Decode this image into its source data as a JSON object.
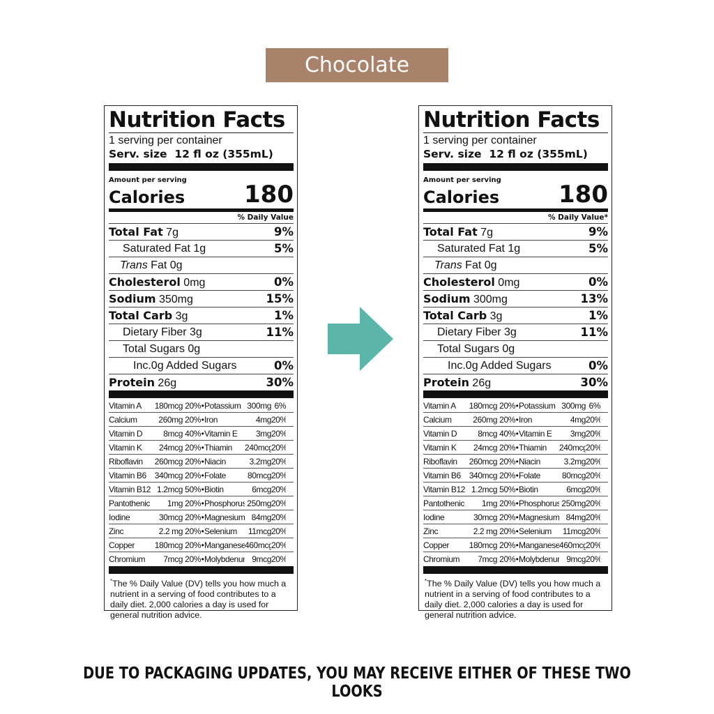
{
  "flavor": "Chocolate",
  "bottom_note": "DUE TO PACKAGING UPDATES, YOU MAY RECEIVE EITHER OF THESE TWO LOOKS",
  "colors": {
    "flavor_badge": "#a8826a",
    "arrow": "#5bb5a8"
  },
  "arrow_icon": "arrow-right-icon",
  "panels": [
    {
      "title": "Nutrition Facts",
      "servings": "1 serving per container",
      "serving_size_label": "Serv. size",
      "serving_size_value": "12 fl oz (355mL)",
      "amount_per_serving": "Amount per serving",
      "calories_label": "Calories",
      "calories_value": "180",
      "dv_header": "% Daily Value",
      "nutrients": [
        {
          "bold": "Total Fat",
          "text": " 7g",
          "pct": "9%",
          "indent": ""
        },
        {
          "bold": "",
          "text": "Saturated Fat 1g",
          "pct": "5%",
          "indent": "ind1"
        },
        {
          "bold": "",
          "italic": "Trans",
          "text": " Fat 0g",
          "pct": "",
          "indent": "ind1i"
        },
        {
          "bold": "Cholesterol",
          "text": " 0mg",
          "pct": "0%",
          "indent": ""
        },
        {
          "bold": "Sodium",
          "text": " 350mg",
          "pct": "15%",
          "indent": ""
        },
        {
          "bold": "Total Carb",
          "text": " 3g",
          "pct": "1%",
          "indent": ""
        },
        {
          "bold": "",
          "text": "Dietary Fiber 3g",
          "pct": "11%",
          "indent": "ind1"
        },
        {
          "bold": "",
          "text": "Total Sugars 0g",
          "pct": "",
          "indent": "ind1"
        },
        {
          "bold": "",
          "text": "Inc.0g Added Sugars",
          "pct": "0%",
          "indent": "ind2"
        },
        {
          "bold": "Protein",
          "text": " 26g",
          "pct": "30%",
          "indent": ""
        }
      ],
      "vitamins": [
        [
          "Vitamin A",
          "180mcg",
          "20%",
          "Potassium",
          "300mg",
          "6%"
        ],
        [
          "Calcium",
          "260mg",
          "20%",
          "Iron",
          "4mg",
          "20%"
        ],
        [
          "Vitamin D",
          "8mcg",
          "40%",
          "Vitamin E",
          "3mg",
          "20%"
        ],
        [
          "Vitamin K",
          "24mcg",
          "20%",
          "Thiamin",
          "240mcg",
          "20%"
        ],
        [
          "Riboflavin",
          "260mcg",
          "20%",
          "Niacin",
          "3.2mg",
          "20%"
        ],
        [
          "Vitamin B6",
          "340mcg",
          "20%",
          "Folate",
          "80mcg",
          "20%"
        ],
        [
          "Vitamin B12",
          "1.2mcg",
          "50%",
          "Biotin",
          "6mcg",
          "20%"
        ],
        [
          "Pantothenic Acid",
          "1mg",
          "20%",
          "Phosphorus",
          "250mg",
          "20%"
        ],
        [
          "Iodine",
          "30mcg",
          "20%",
          "Magnesium",
          "84mg",
          "20%"
        ],
        [
          "Zinc",
          "2.2 mg",
          "20%",
          "Selenium",
          "11mcg",
          "20%"
        ],
        [
          "Copper",
          "180mcg",
          "20%",
          "Manganese",
          "460mcg",
          "20%"
        ],
        [
          "Chromium",
          "7mcg",
          "20%",
          "Molybdenum",
          "9mcg",
          "20%"
        ]
      ],
      "footnote_star": "*",
      "footnote": "The % Daily Value (DV) tells you how much a nutrient in a serving of food contributes to a daily diet. 2,000 calories a day is used for general nutrition advice."
    },
    {
      "title": "Nutrition Facts",
      "servings": "1 serving per container",
      "serving_size_label": "Serv. size",
      "serving_size_value": "12 fl oz (355mL)",
      "amount_per_serving": "Amount per serving",
      "calories_label": "Calories",
      "calories_value": "180",
      "dv_header": "% Daily Value*",
      "nutrients": [
        {
          "bold": "Total Fat",
          "text": " 7g",
          "pct": "9%",
          "indent": ""
        },
        {
          "bold": "",
          "text": "Saturated Fat 1g",
          "pct": "5%",
          "indent": "ind1"
        },
        {
          "bold": "",
          "italic": "Trans",
          "text": " Fat 0g",
          "pct": "",
          "indent": "ind1i"
        },
        {
          "bold": "Cholesterol",
          "text": " 0mg",
          "pct": "0%",
          "indent": ""
        },
        {
          "bold": "Sodium",
          "text": " 300mg",
          "pct": "13%",
          "indent": ""
        },
        {
          "bold": "Total Carb",
          "text": " 3g",
          "pct": "1%",
          "indent": ""
        },
        {
          "bold": "",
          "text": "Dietary Fiber 3g",
          "pct": "11%",
          "indent": "ind1"
        },
        {
          "bold": "",
          "text": "Total Sugars 0g",
          "pct": "",
          "indent": "ind1"
        },
        {
          "bold": "",
          "text": "Inc.0g Added Sugars",
          "pct": "0%",
          "indent": "ind2"
        },
        {
          "bold": "Protein",
          "text": " 26g",
          "pct": "30%",
          "indent": ""
        }
      ],
      "vitamins": [
        [
          "Vitamin A",
          "180mcg",
          "20%",
          "Potassium",
          "300mg",
          "6%"
        ],
        [
          "Calcium",
          "260mg",
          "20%",
          "Iron",
          "4mg",
          "20%"
        ],
        [
          "Vitamin D",
          "8mcg",
          "40%",
          "Vitamin E",
          "3mg",
          "20%"
        ],
        [
          "Vitamin K",
          "24mcg",
          "20%",
          "Thiamin",
          "240mcg",
          "20%"
        ],
        [
          "Riboflavin",
          "260mcg",
          "20%",
          "Niacin",
          "3.2mg",
          "20%"
        ],
        [
          "Vitamin B6",
          "340mcg",
          "20%",
          "Folate",
          "80mcg",
          "20%"
        ],
        [
          "Vitamin B12",
          "1.2mcg",
          "50%",
          "Biotin",
          "6mcg",
          "20%"
        ],
        [
          "Pantothenic Acid",
          "1mg",
          "20%",
          "Phosphorus",
          "250mg",
          "20%"
        ],
        [
          "Iodine",
          "30mcg",
          "20%",
          "Magnesium",
          "84mg",
          "20%"
        ],
        [
          "Zinc",
          "2.2 mg",
          "20%",
          "Selenium",
          "11mcg",
          "20%"
        ],
        [
          "Copper",
          "180mcg",
          "20%",
          "Manganese",
          "460mcg",
          "20%"
        ],
        [
          "Chromium",
          "7mcg",
          "20%",
          "Molybdenum",
          "9mcg",
          "20%"
        ]
      ],
      "footnote_star": "*",
      "footnote": "The % Daily Value (DV) tells you how much a nutrient in a serving of food contributes to a daily diet. 2,000 calories a day is used for general nutrition advice."
    }
  ]
}
